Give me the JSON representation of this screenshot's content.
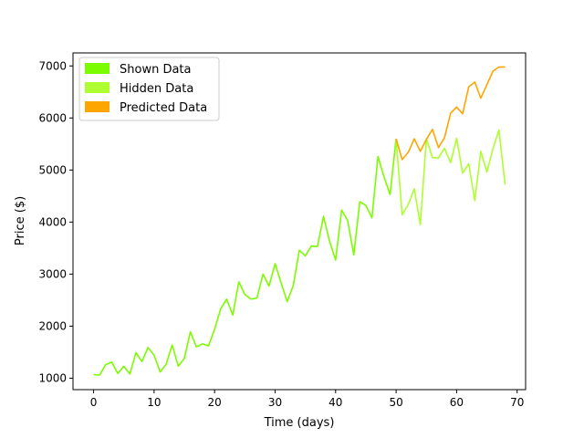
{
  "chart_data": {
    "type": "line",
    "title": "",
    "xlabel": "Time (days)",
    "ylabel": "Price ($)",
    "xlim": [
      -3.4,
      71.4
    ],
    "ylim": [
      780,
      7250
    ],
    "xticks": [
      0,
      10,
      20,
      30,
      40,
      50,
      60,
      70
    ],
    "yticks": [
      1000,
      2000,
      3000,
      4000,
      5000,
      6000,
      7000
    ],
    "grid": false,
    "legend_position": "top-left",
    "series": [
      {
        "name": "Shown Data",
        "color": "#7cfc00",
        "x": [
          0,
          1,
          2,
          3,
          4,
          5,
          6,
          7,
          8,
          9,
          10,
          11,
          12,
          13,
          14,
          15,
          16,
          17,
          18,
          19,
          20,
          21,
          22,
          23,
          24,
          25,
          26,
          27,
          28,
          29,
          30,
          31,
          32,
          33,
          34,
          35,
          36,
          37,
          38,
          39,
          40,
          41,
          42,
          43,
          44,
          45,
          46,
          47,
          48,
          49,
          50
        ],
        "y": [
          1070,
          1060,
          1260,
          1310,
          1090,
          1230,
          1080,
          1490,
          1320,
          1590,
          1440,
          1120,
          1270,
          1640,
          1230,
          1380,
          1890,
          1600,
          1660,
          1620,
          1940,
          2330,
          2520,
          2210,
          2850,
          2610,
          2520,
          2540,
          3000,
          2770,
          3200,
          2830,
          2470,
          2780,
          3460,
          3350,
          3540,
          3530,
          4110,
          3630,
          3270,
          4230,
          4030,
          3370,
          4390,
          4320,
          4080,
          5260,
          4870,
          4530,
          5600
        ]
      },
      {
        "name": "Hidden Data",
        "color": "#adff2f",
        "x": [
          50,
          51,
          52,
          53,
          54,
          55,
          56,
          57,
          58,
          59,
          60,
          61,
          62,
          63,
          64,
          65,
          66,
          67,
          68
        ],
        "y": [
          5600,
          4140,
          4340,
          4640,
          3950,
          5600,
          5240,
          5230,
          5420,
          5140,
          5610,
          4940,
          5120,
          4410,
          5360,
          4960,
          5410,
          5770,
          4720
        ]
      },
      {
        "name": "Predicted Data",
        "color": "#ffa500",
        "x": [
          50,
          51,
          52,
          53,
          54,
          55,
          56,
          57,
          58,
          59,
          60,
          61,
          62,
          63,
          64,
          65,
          66,
          67,
          68
        ],
        "y": [
          5600,
          5200,
          5340,
          5600,
          5360,
          5590,
          5780,
          5430,
          5620,
          6090,
          6210,
          6080,
          6600,
          6690,
          6380,
          6640,
          6900,
          6980,
          6980
        ]
      }
    ]
  }
}
